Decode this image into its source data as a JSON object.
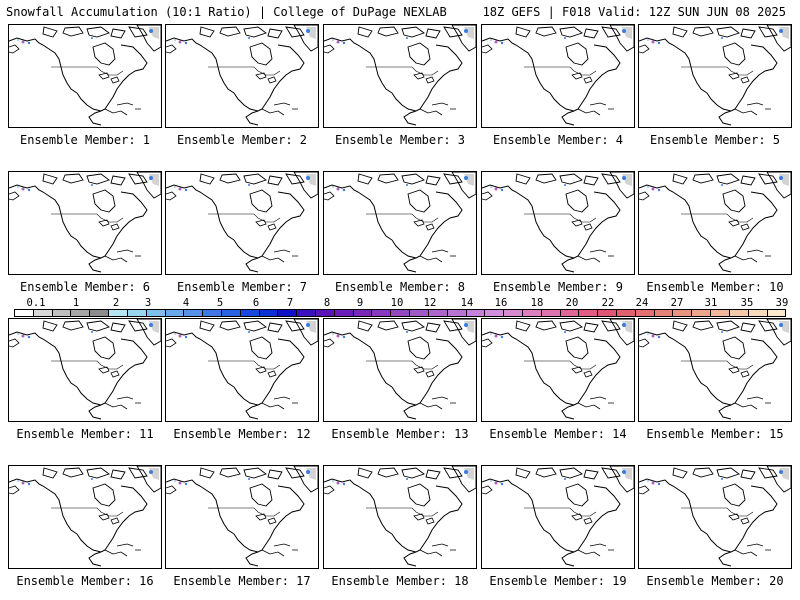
{
  "header": {
    "left_title": "Snowfall Accumulation (10:1 Ratio) | College of DuPage NEXLAB",
    "right_title": "18Z GEFS | F018 Valid: 12Z SUN JUN 08 2025"
  },
  "members": [
    {
      "label": "Ensemble Member: 1"
    },
    {
      "label": "Ensemble Member: 2"
    },
    {
      "label": "Ensemble Member: 3"
    },
    {
      "label": "Ensemble Member: 4"
    },
    {
      "label": "Ensemble Member: 5"
    },
    {
      "label": "Ensemble Member: 6"
    },
    {
      "label": "Ensemble Member: 7"
    },
    {
      "label": "Ensemble Member: 8"
    },
    {
      "label": "Ensemble Member: 9"
    },
    {
      "label": "Ensemble Member: 10"
    },
    {
      "label": "Ensemble Member: 11"
    },
    {
      "label": "Ensemble Member: 12"
    },
    {
      "label": "Ensemble Member: 13"
    },
    {
      "label": "Ensemble Member: 14"
    },
    {
      "label": "Ensemble Member: 15"
    },
    {
      "label": "Ensemble Member: 16"
    },
    {
      "label": "Ensemble Member: 17"
    },
    {
      "label": "Ensemble Member: 18"
    },
    {
      "label": "Ensemble Member: 19"
    },
    {
      "label": "Ensemble Member: 20"
    }
  ],
  "colorbar": {
    "labels": [
      "0.1",
      "1",
      "2",
      "3",
      "4",
      "5",
      "6",
      "7",
      "8",
      "9",
      "10",
      "12",
      "14",
      "16",
      "18",
      "20",
      "22",
      "24",
      "27",
      "31",
      "35",
      "39"
    ],
    "colors": [
      "#ffffff",
      "#d9d9d9",
      "#bfbfbf",
      "#a6a6a6",
      "#8c8c8c",
      "#b3e6f2",
      "#99d6f0",
      "#7fbfee",
      "#6aa8ee",
      "#5590ea",
      "#3f78e6",
      "#2a60e2",
      "#1a48de",
      "#0c30d8",
      "#1010c8",
      "#3a10c0",
      "#5a14b8",
      "#6a1cb8",
      "#7a28b8",
      "#8838bc",
      "#9448c0",
      "#a058c6",
      "#ac66cc",
      "#b874d2",
      "#c682d8",
      "#d08edc",
      "#d88ad0",
      "#dc80c0",
      "#de74ae",
      "#e06898",
      "#e05c84",
      "#e05474",
      "#e06070",
      "#e27070",
      "#e48276",
      "#e8947e",
      "#eca68a",
      "#f0b898",
      "#f4caa8",
      "#f8dcbc",
      "#fce8cc"
    ]
  },
  "map_colors": {
    "coast": "#000000",
    "snow_light": "#9ec8f0",
    "snow_blue": "#3a7be0",
    "snow_purple": "#b060c0",
    "snow_gray": "#c8c8c8"
  }
}
